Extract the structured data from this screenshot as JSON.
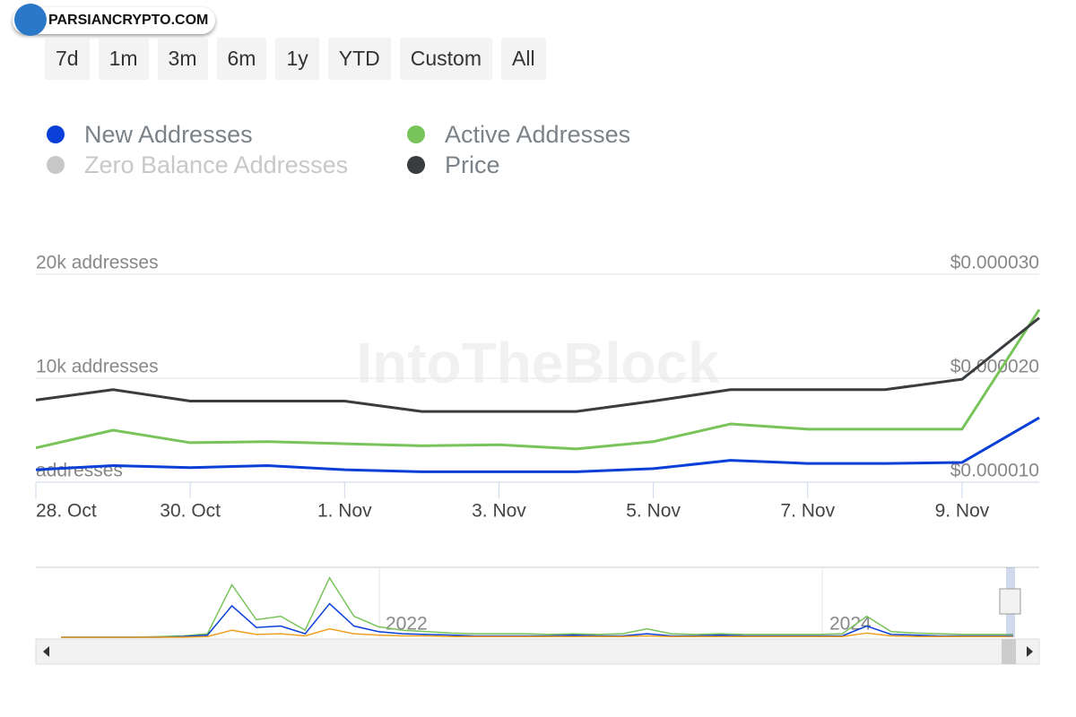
{
  "chart_data": {
    "type": "line",
    "brand": "PARSIANCRYPTO.COM",
    "watermark": "IntoTheBlock",
    "ranges": [
      "7d",
      "1m",
      "3m",
      "6m",
      "1y",
      "YTD",
      "Custom",
      "All"
    ],
    "categories": [
      "28. Oct",
      null,
      "30. Oct",
      null,
      "1. Nov",
      null,
      "3. Nov",
      null,
      "5. Nov",
      null,
      "7. Nov",
      null,
      "9. Nov",
      null
    ],
    "series": [
      {
        "name": "New Addresses",
        "color": "#0a3fd8",
        "values": [
          1200,
          1600,
          1400,
          1600,
          1200,
          1000,
          1000,
          1000,
          1300,
          2100,
          1800,
          1800,
          1900,
          6200
        ]
      },
      {
        "name": "Zero Balance Addresses",
        "color": "#c8c8c8",
        "hidden": true
      },
      {
        "name": "Active Addresses",
        "color": "#78c45a",
        "values": [
          3300,
          5000,
          3800,
          3900,
          3700,
          3500,
          3600,
          3200,
          3900,
          5600,
          5100,
          5100,
          5100,
          16600
        ]
      },
      {
        "name": "Price",
        "color": "#3a3d40",
        "axis": "y2",
        "values": [
          1.79e-05,
          1.89e-05,
          1.78e-05,
          1.78e-05,
          1.78e-05,
          1.68e-05,
          1.68e-05,
          1.68e-05,
          1.78e-05,
          1.89e-05,
          1.89e-05,
          1.89e-05,
          1.99e-05,
          2.58e-05
        ]
      }
    ],
    "ylim": [
      0,
      20000
    ],
    "yticks": [
      {
        "value": 0,
        "label": "addresses"
      },
      {
        "value": 10000,
        "label": "10k addresses"
      },
      {
        "value": 20000,
        "label": "20k addresses"
      }
    ],
    "y2lim": [
      1e-05,
      3e-05
    ],
    "y2ticks": [
      {
        "value": 1e-05,
        "label": "$0.000010"
      },
      {
        "value": 2e-05,
        "label": "$0.000020"
      },
      {
        "value": 3e-05,
        "label": "$0.000030"
      }
    ],
    "grid": true,
    "navigator": {
      "labels": [
        "2022",
        "2024"
      ],
      "ylim": [
        0,
        100
      ],
      "series": [
        {
          "color": "#78c45a",
          "values": [
            0,
            0,
            0,
            0,
            1,
            2,
            5,
            75,
            25,
            30,
            10,
            85,
            30,
            15,
            10,
            8,
            6,
            5,
            5,
            5,
            4,
            5,
            4,
            5,
            12,
            5,
            4,
            5,
            4,
            4,
            4,
            4,
            5,
            30,
            8,
            6,
            5,
            4,
            4,
            4
          ]
        },
        {
          "color": "#0a3fd8",
          "values": [
            0,
            0,
            0,
            0,
            0,
            1,
            3,
            45,
            14,
            16,
            5,
            48,
            16,
            8,
            5,
            4,
            3,
            2,
            2,
            2,
            2,
            3,
            2,
            2,
            5,
            2,
            2,
            3,
            2,
            2,
            2,
            2,
            2,
            16,
            4,
            3,
            2,
            2,
            2,
            2
          ]
        },
        {
          "color": "#f0a020",
          "values": [
            0,
            0,
            0,
            0,
            0,
            0,
            1,
            10,
            4,
            5,
            2,
            12,
            5,
            3,
            2,
            2,
            1,
            1,
            1,
            1,
            1,
            1,
            1,
            1,
            2,
            1,
            1,
            1,
            1,
            1,
            1,
            1,
            1,
            6,
            2,
            1,
            1,
            1,
            1,
            1
          ]
        }
      ]
    }
  }
}
